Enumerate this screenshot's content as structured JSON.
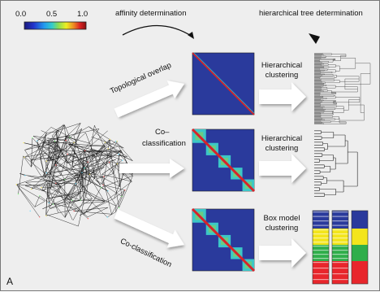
{
  "colorbar": {
    "ticks": [
      "0.0",
      "0.5",
      "1.0"
    ],
    "colors": [
      "#1a1a7a",
      "#2233cc",
      "#2299ee",
      "#33cccc",
      "#88dd55",
      "#eeee22",
      "#ee8822",
      "#dd2222",
      "#881111"
    ]
  },
  "headers": {
    "affinity": "affinity determination",
    "tree": "hierarchical tree determination"
  },
  "edge_labels": {
    "topological_overlap": "Topological overlap",
    "co_classification_1": "Co–",
    "co_classification_1b": "classification",
    "co_classification_2": "Co-classification"
  },
  "method_labels": {
    "hier1_line1": "Hierarchical",
    "hier1_line2": "clustering",
    "hier2_line1": "Hierarchical",
    "hier2_line2": "clustering",
    "box_line1": "Box model",
    "box_line2": "clustering"
  },
  "panel_label": "A",
  "colors": {
    "matrix_bg": "#2a3a9c",
    "diag_red": "#d8232a",
    "block_cyan": "#3cc7c7",
    "block_green": "#7ccf6a",
    "arrow_fill": "#ffffff",
    "network_bg": "#1c1c1c",
    "yellow_band": "#f3e51c",
    "green_band": "#2fae4a",
    "red_band": "#e8262c",
    "navy_band": "#2a3a9c"
  }
}
